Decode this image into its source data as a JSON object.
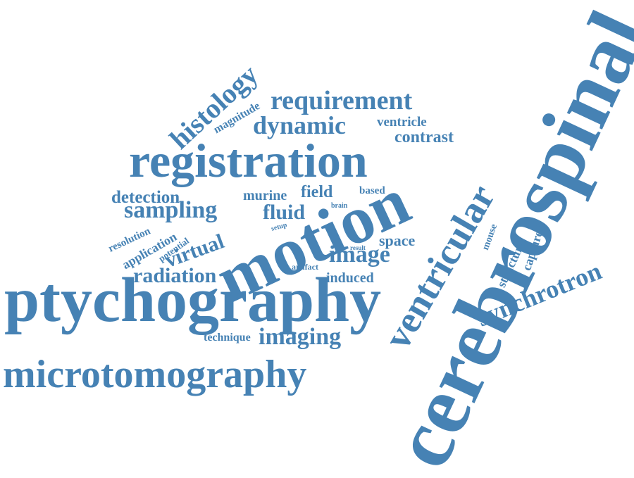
{
  "word_cloud": {
    "text_color": "#4682b4",
    "background": "#ffffff",
    "words": {
      "cerebrospinal": "cerebrospinal",
      "motion": "motion",
      "ptychography": "ptychography",
      "registration": "registration",
      "microtomography": "microtomography",
      "ventricular": "ventricular",
      "synchrotron": "synchrotron",
      "histology": "histology",
      "requirement": "requirement",
      "dynamic": "dynamic",
      "sampling": "sampling",
      "fluid": "fluid",
      "image": "image",
      "imaging": "imaging",
      "radiation": "radiation",
      "detection": "detection",
      "virtual": "virtual",
      "contrast": "contrast",
      "ventricle": "ventricle",
      "magnitude": "magnitude",
      "murine": "murine",
      "field": "field",
      "based": "based",
      "space": "space",
      "induced": "induced",
      "technique": "technique",
      "resolution": "resolution",
      "application": "application",
      "potential": "potential",
      "artifact": "artifact",
      "structure": "structure",
      "captured": "captured",
      "mouse": "mouse",
      "brain": "brain",
      "setup": "setup",
      "result": "result"
    }
  }
}
